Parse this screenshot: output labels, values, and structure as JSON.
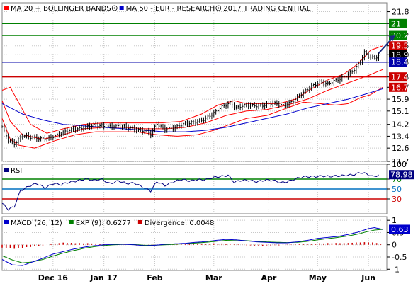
{
  "colors": {
    "price": "#000000",
    "bollinger": "#ff0000",
    "ma50": "#0000cc",
    "support": "#0000aa",
    "resistance": "#008000",
    "stop": "#cc0000",
    "rsi": "#000080",
    "rsi_70": "#008000",
    "rsi_50": "#0070c0",
    "rsi_30": "#cc0000",
    "macd": "#0000cc",
    "signal": "#008000",
    "divergence": "#cc0000",
    "grid": "#c8c8c8"
  },
  "chart_data": [
    {
      "type": "line",
      "panel": "price",
      "legend": [
        {
          "label": "MA 20 + BOLLINGER BANDS",
          "color": "#ff0000",
          "icon": "circle-dot-icon"
        },
        {
          "label": "MA 50 - EUR - RESEARCH",
          "color": "#0000cc",
          "icon": "copyright-icon"
        },
        {
          "label": "2017 TRADING CENTRAL",
          "color": "#000000",
          "icon": ""
        }
      ],
      "months": [
        "Dec 16",
        "Jan 17",
        "Feb",
        "Mar",
        "Apr",
        "May",
        "Jun"
      ],
      "month_index": [
        25,
        50,
        75,
        104,
        131,
        155,
        180
      ],
      "n_bars": 190,
      "yticks": [
        11.7,
        12.6,
        13.4,
        14.2,
        15.1,
        15.9,
        16.7,
        17.4,
        18.4,
        18.9,
        19.5,
        20.2,
        21,
        21.8
      ],
      "ylim": [
        11.7,
        22.4
      ],
      "horizontal_levels": [
        {
          "value": 21,
          "label": "21",
          "color": "#008000"
        },
        {
          "value": 20.2,
          "label": "20.2",
          "color": "#008000"
        },
        {
          "value": 19.5,
          "label": "19.5",
          "color": "#cc0000",
          "badge_only": true
        },
        {
          "value": 18.9,
          "label": "18.9",
          "color": "#000000",
          "badge_only": true
        },
        {
          "value": 18.4,
          "label": "18.4",
          "color": "#0000aa"
        },
        {
          "value": 17.4,
          "label": "17.4",
          "color": "#cc0000"
        },
        {
          "value": 16.7,
          "label": "16.7",
          "color": "#cc0000",
          "badge_only": true
        }
      ],
      "price_anchors": [
        [
          0,
          14.0
        ],
        [
          3,
          13.1
        ],
        [
          6,
          12.9
        ],
        [
          10,
          13.5
        ],
        [
          14,
          13.3
        ],
        [
          18,
          13.2
        ],
        [
          22,
          13.3
        ],
        [
          25,
          13.4
        ],
        [
          30,
          13.6
        ],
        [
          35,
          13.9
        ],
        [
          40,
          14.0
        ],
        [
          45,
          14.1
        ],
        [
          50,
          14.1
        ],
        [
          55,
          14.1
        ],
        [
          60,
          14.0
        ],
        [
          65,
          13.9
        ],
        [
          70,
          13.8
        ],
        [
          73,
          13.5
        ],
        [
          76,
          14.2
        ],
        [
          80,
          13.9
        ],
        [
          85,
          14.0
        ],
        [
          90,
          14.2
        ],
        [
          95,
          14.4
        ],
        [
          100,
          14.6
        ],
        [
          104,
          14.9
        ],
        [
          108,
          15.4
        ],
        [
          112,
          15.7
        ],
        [
          115,
          15.3
        ],
        [
          118,
          15.4
        ],
        [
          122,
          15.5
        ],
        [
          128,
          15.5
        ],
        [
          133,
          15.6
        ],
        [
          138,
          15.5
        ],
        [
          143,
          15.8
        ],
        [
          148,
          16.3
        ],
        [
          152,
          16.8
        ],
        [
          156,
          17.1
        ],
        [
          160,
          16.9
        ],
        [
          165,
          17.2
        ],
        [
          170,
          17.6
        ],
        [
          173,
          17.9
        ],
        [
          176,
          18.4
        ],
        [
          178,
          19.0
        ],
        [
          180,
          18.8
        ],
        [
          183,
          18.7
        ],
        [
          185,
          18.9
        ]
      ],
      "target_arrow": {
        "from": [
          185,
          19.0
        ],
        "to": [
          193,
          20.2
        ]
      },
      "ma20_anchors": [
        [
          0,
          15.8
        ],
        [
          4,
          14.4
        ],
        [
          10,
          13.5
        ],
        [
          20,
          13.2
        ],
        [
          30,
          13.5
        ],
        [
          40,
          13.9
        ],
        [
          50,
          14.0
        ],
        [
          60,
          14.0
        ],
        [
          70,
          13.9
        ],
        [
          80,
          13.9
        ],
        [
          90,
          14.0
        ],
        [
          100,
          14.3
        ],
        [
          110,
          14.8
        ],
        [
          120,
          15.1
        ],
        [
          130,
          15.2
        ],
        [
          140,
          15.5
        ],
        [
          150,
          15.9
        ],
        [
          160,
          16.5
        ],
        [
          170,
          17.0
        ],
        [
          180,
          17.5
        ],
        [
          187,
          17.9
        ]
      ],
      "boll_upper_anchors": [
        [
          0,
          16.5
        ],
        [
          4,
          16.7
        ],
        [
          8,
          15.7
        ],
        [
          14,
          14.2
        ],
        [
          22,
          13.6
        ],
        [
          30,
          13.9
        ],
        [
          40,
          14.2
        ],
        [
          50,
          14.3
        ],
        [
          60,
          14.3
        ],
        [
          70,
          14.3
        ],
        [
          78,
          14.3
        ],
        [
          88,
          14.4
        ],
        [
          98,
          14.9
        ],
        [
          106,
          15.5
        ],
        [
          114,
          15.8
        ],
        [
          120,
          15.6
        ],
        [
          128,
          15.6
        ],
        [
          136,
          15.6
        ],
        [
          144,
          15.9
        ],
        [
          152,
          16.6
        ],
        [
          160,
          17.2
        ],
        [
          168,
          17.6
        ],
        [
          175,
          18.3
        ],
        [
          181,
          19.2
        ],
        [
          187,
          19.5
        ]
      ],
      "boll_lower_anchors": [
        [
          0,
          14.6
        ],
        [
          4,
          13.2
        ],
        [
          8,
          12.8
        ],
        [
          16,
          12.6
        ],
        [
          26,
          13.1
        ],
        [
          36,
          13.5
        ],
        [
          46,
          13.7
        ],
        [
          56,
          13.7
        ],
        [
          66,
          13.7
        ],
        [
          76,
          13.5
        ],
        [
          86,
          13.4
        ],
        [
          96,
          13.5
        ],
        [
          104,
          13.8
        ],
        [
          112,
          14.2
        ],
        [
          120,
          14.6
        ],
        [
          130,
          14.8
        ],
        [
          140,
          15.3
        ],
        [
          148,
          15.7
        ],
        [
          156,
          15.6
        ],
        [
          164,
          15.5
        ],
        [
          170,
          15.6
        ],
        [
          176,
          16.0
        ],
        [
          181,
          16.2
        ],
        [
          187,
          16.7
        ]
      ],
      "ma50_anchors": [
        [
          0,
          15.6
        ],
        [
          10,
          14.9
        ],
        [
          20,
          14.5
        ],
        [
          30,
          14.2
        ],
        [
          40,
          14.1
        ],
        [
          50,
          14.0
        ],
        [
          60,
          13.9
        ],
        [
          70,
          13.8
        ],
        [
          80,
          13.7
        ],
        [
          90,
          13.7
        ],
        [
          100,
          13.8
        ],
        [
          110,
          14.0
        ],
        [
          120,
          14.3
        ],
        [
          130,
          14.6
        ],
        [
          140,
          14.9
        ],
        [
          150,
          15.3
        ],
        [
          160,
          15.6
        ],
        [
          170,
          15.9
        ],
        [
          180,
          16.3
        ],
        [
          187,
          16.6
        ]
      ]
    },
    {
      "type": "line",
      "panel": "rsi",
      "legend": [
        {
          "label": "RSI",
          "color": "#000080"
        }
      ],
      "yticks": [
        100,
        70,
        50,
        30
      ],
      "ylim": [
        0,
        100
      ],
      "current": 78.98,
      "current_label": "78.98",
      "levels": [
        {
          "value": 70,
          "label": "70",
          "color": "#008000"
        },
        {
          "value": 50,
          "label": "50",
          "color": "#0070c0"
        },
        {
          "value": 30,
          "label": "30",
          "color": "#cc0000"
        }
      ],
      "rsi_anchors": [
        [
          0,
          20
        ],
        [
          3,
          8
        ],
        [
          6,
          15
        ],
        [
          9,
          48
        ],
        [
          13,
          55
        ],
        [
          17,
          60
        ],
        [
          21,
          53
        ],
        [
          25,
          62
        ],
        [
          29,
          58
        ],
        [
          33,
          63
        ],
        [
          37,
          68
        ],
        [
          41,
          71
        ],
        [
          45,
          66
        ],
        [
          49,
          70
        ],
        [
          53,
          62
        ],
        [
          57,
          66
        ],
        [
          61,
          60
        ],
        [
          65,
          63
        ],
        [
          69,
          55
        ],
        [
          73,
          45
        ],
        [
          76,
          64
        ],
        [
          80,
          58
        ],
        [
          84,
          65
        ],
        [
          88,
          68
        ],
        [
          92,
          66
        ],
        [
          96,
          70
        ],
        [
          100,
          69
        ],
        [
          104,
          72
        ],
        [
          108,
          76
        ],
        [
          111,
          79
        ],
        [
          114,
          64
        ],
        [
          117,
          66
        ],
        [
          121,
          67
        ],
        [
          125,
          66
        ],
        [
          129,
          68
        ],
        [
          133,
          66
        ],
        [
          137,
          63
        ],
        [
          141,
          67
        ],
        [
          145,
          71
        ],
        [
          149,
          74
        ],
        [
          153,
          76
        ],
        [
          157,
          77
        ],
        [
          161,
          74
        ],
        [
          165,
          76
        ],
        [
          169,
          79
        ],
        [
          173,
          79
        ],
        [
          176,
          82
        ],
        [
          179,
          80
        ],
        [
          182,
          76
        ],
        [
          185,
          79
        ]
      ]
    },
    {
      "type": "line",
      "panel": "macd",
      "legend": [
        {
          "label": "MACD (26, 12)",
          "color": "#0000cc"
        },
        {
          "label": "EXP (9): 0.6277",
          "color": "#008000"
        },
        {
          "label": "Divergence: 0.0048",
          "color": "#cc0000"
        }
      ],
      "yticks": [
        1,
        0.5,
        0,
        -0.5,
        -1
      ],
      "ylim": [
        -1.05,
        1.15
      ],
      "current": 0.63,
      "current_label": "0.63",
      "macd_anchors": [
        [
          0,
          -0.6
        ],
        [
          5,
          -0.82
        ],
        [
          10,
          -0.85
        ],
        [
          15,
          -0.7
        ],
        [
          20,
          -0.55
        ],
        [
          25,
          -0.38
        ],
        [
          30,
          -0.28
        ],
        [
          35,
          -0.18
        ],
        [
          40,
          -0.1
        ],
        [
          45,
          -0.04
        ],
        [
          50,
          0.0
        ],
        [
          55,
          0.02
        ],
        [
          60,
          0.02
        ],
        [
          65,
          0.0
        ],
        [
          70,
          -0.04
        ],
        [
          75,
          -0.02
        ],
        [
          80,
          0.02
        ],
        [
          85,
          0.04
        ],
        [
          90,
          0.06
        ],
        [
          95,
          0.1
        ],
        [
          100,
          0.13
        ],
        [
          105,
          0.18
        ],
        [
          110,
          0.22
        ],
        [
          115,
          0.2
        ],
        [
          120,
          0.16
        ],
        [
          125,
          0.12
        ],
        [
          130,
          0.1
        ],
        [
          135,
          0.08
        ],
        [
          140,
          0.08
        ],
        [
          145,
          0.12
        ],
        [
          150,
          0.18
        ],
        [
          155,
          0.26
        ],
        [
          160,
          0.3
        ],
        [
          165,
          0.34
        ],
        [
          170,
          0.42
        ],
        [
          175,
          0.52
        ],
        [
          180,
          0.66
        ],
        [
          183,
          0.7
        ],
        [
          187,
          0.63
        ]
      ],
      "signal_anchors": [
        [
          0,
          -0.45
        ],
        [
          5,
          -0.62
        ],
        [
          10,
          -0.74
        ],
        [
          15,
          -0.7
        ],
        [
          20,
          -0.6
        ],
        [
          25,
          -0.46
        ],
        [
          30,
          -0.34
        ],
        [
          35,
          -0.24
        ],
        [
          40,
          -0.15
        ],
        [
          45,
          -0.08
        ],
        [
          50,
          -0.03
        ],
        [
          55,
          0.0
        ],
        [
          60,
          0.02
        ],
        [
          65,
          0.01
        ],
        [
          70,
          -0.02
        ],
        [
          75,
          -0.02
        ],
        [
          80,
          0.0
        ],
        [
          85,
          0.02
        ],
        [
          90,
          0.04
        ],
        [
          95,
          0.07
        ],
        [
          100,
          0.1
        ],
        [
          105,
          0.14
        ],
        [
          110,
          0.18
        ],
        [
          115,
          0.19
        ],
        [
          120,
          0.17
        ],
        [
          125,
          0.14
        ],
        [
          130,
          0.12
        ],
        [
          135,
          0.1
        ],
        [
          140,
          0.09
        ],
        [
          145,
          0.1
        ],
        [
          150,
          0.14
        ],
        [
          155,
          0.2
        ],
        [
          160,
          0.25
        ],
        [
          165,
          0.3
        ],
        [
          170,
          0.36
        ],
        [
          175,
          0.44
        ],
        [
          180,
          0.55
        ],
        [
          183,
          0.6
        ],
        [
          187,
          0.6277
        ]
      ],
      "divergence_anchors": [
        [
          0,
          -0.12
        ],
        [
          6,
          -0.16
        ],
        [
          12,
          -0.1
        ],
        [
          18,
          -0.06
        ],
        [
          24,
          0.04
        ],
        [
          30,
          0.08
        ],
        [
          36,
          0.07
        ],
        [
          42,
          0.06
        ],
        [
          48,
          0.04
        ],
        [
          54,
          0.03
        ],
        [
          60,
          0.01
        ],
        [
          66,
          -0.02
        ],
        [
          72,
          -0.03
        ],
        [
          78,
          0.01
        ],
        [
          84,
          0.03
        ],
        [
          90,
          0.03
        ],
        [
          96,
          0.04
        ],
        [
          102,
          0.05
        ],
        [
          108,
          0.05
        ],
        [
          114,
          0.02
        ],
        [
          120,
          -0.02
        ],
        [
          126,
          -0.03
        ],
        [
          132,
          -0.03
        ],
        [
          138,
          -0.01
        ],
        [
          144,
          0.02
        ],
        [
          150,
          0.04
        ],
        [
          156,
          0.06
        ],
        [
          162,
          0.06
        ],
        [
          168,
          0.07
        ],
        [
          174,
          0.09
        ],
        [
          180,
          0.1
        ],
        [
          184,
          0.08
        ],
        [
          187,
          0.0048
        ]
      ]
    }
  ]
}
